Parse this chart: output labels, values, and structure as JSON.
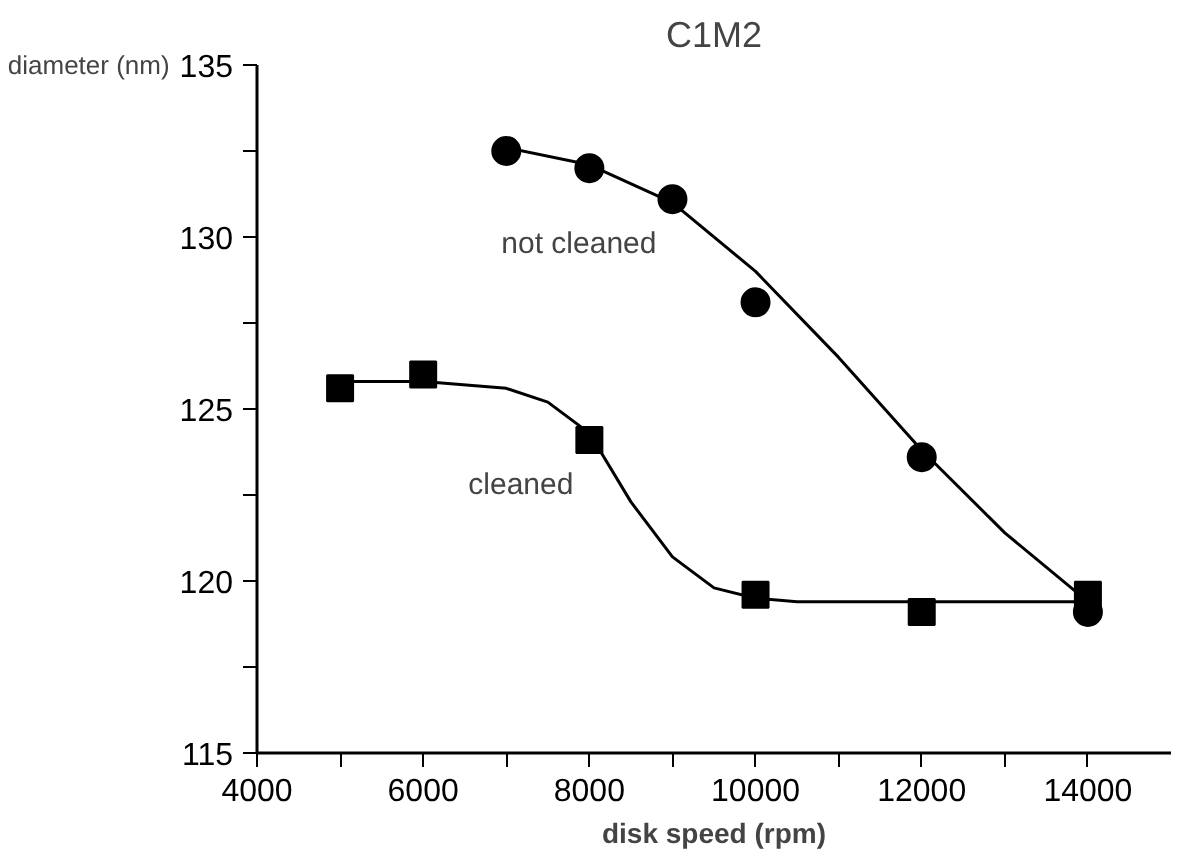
{
  "chart_data": {
    "type": "scatter",
    "title": "C1M2",
    "xlabel": "disk speed (rpm)",
    "ylabel": "diameter (nm)",
    "xlim": [
      4000,
      15000
    ],
    "ylim": [
      115,
      135
    ],
    "xticks": [
      4000,
      {
        "value": 5000,
        "label": null
      },
      6000,
      {
        "value": 7000,
        "label": null
      },
      8000,
      {
        "value": 9000,
        "label": null
      },
      10000,
      {
        "value": 11000,
        "label": null
      },
      12000,
      {
        "value": 13000,
        "label": null
      },
      14000
    ],
    "yticks": [
      115,
      {
        "value": 117.5,
        "label": null
      },
      120,
      {
        "value": 122.5,
        "label": null
      },
      125,
      {
        "value": 127.5,
        "label": null
      },
      130,
      {
        "value": 132.5,
        "label": null
      },
      135
    ],
    "grid": false,
    "series": [
      {
        "name": "not cleaned",
        "marker": "circle",
        "color": "#000000",
        "x": [
          7000,
          8000,
          9000,
          10000,
          12000,
          14000
        ],
        "values": [
          132.5,
          132.0,
          131.1,
          128.1,
          123.6,
          119.1
        ]
      },
      {
        "name": "cleaned",
        "marker": "square",
        "color": "#000000",
        "x": [
          5000,
          6000,
          8000,
          10000,
          12000,
          14000
        ],
        "values": [
          125.6,
          126.0,
          124.1,
          119.6,
          119.1,
          119.6
        ]
      },
      {
        "type": "line",
        "color": "#000000",
        "x": [
          7000,
          8000,
          9000,
          10000,
          11000,
          12000,
          13000,
          14000
        ],
        "values": [
          132.6,
          132.1,
          131.0,
          129.0,
          126.5,
          123.8,
          121.4,
          119.4
        ]
      },
      {
        "type": "line",
        "color": "#000000",
        "x": [
          5000,
          6000,
          7000,
          7500,
          8000,
          8500,
          9000,
          9500,
          10000,
          10500,
          14000
        ],
        "values": [
          125.8,
          125.8,
          125.6,
          125.2,
          124.3,
          122.3,
          120.7,
          119.8,
          119.5,
          119.4,
          119.4
        ]
      }
    ]
  }
}
